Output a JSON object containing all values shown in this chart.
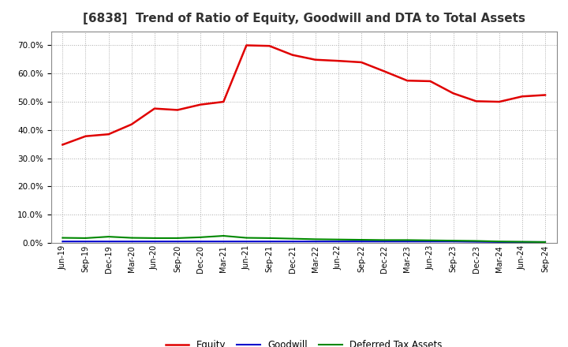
{
  "title": "[6838]  Trend of Ratio of Equity, Goodwill and DTA to Total Assets",
  "x_labels": [
    "Jun-19",
    "Sep-19",
    "Dec-19",
    "Mar-20",
    "Jun-20",
    "Sep-20",
    "Dec-20",
    "Mar-21",
    "Jun-21",
    "Sep-21",
    "Dec-21",
    "Mar-22",
    "Jun-22",
    "Sep-22",
    "Dec-22",
    "Mar-23",
    "Jun-23",
    "Sep-23",
    "Dec-23",
    "Mar-24",
    "Jun-24",
    "Sep-24"
  ],
  "equity": [
    0.348,
    0.378,
    0.385,
    0.42,
    0.476,
    0.471,
    0.49,
    0.5,
    0.7,
    0.698,
    0.666,
    0.649,
    0.645,
    0.64,
    0.608,
    0.575,
    0.573,
    0.53,
    0.502,
    0.5,
    0.519,
    0.524
  ],
  "goodwill": [
    0.005,
    0.005,
    0.005,
    0.005,
    0.005,
    0.005,
    0.005,
    0.005,
    0.005,
    0.005,
    0.005,
    0.005,
    0.005,
    0.005,
    0.005,
    0.005,
    0.005,
    0.005,
    0.004,
    0.003,
    0.003,
    0.003
  ],
  "dta": [
    0.018,
    0.017,
    0.022,
    0.018,
    0.017,
    0.017,
    0.02,
    0.025,
    0.018,
    0.017,
    0.015,
    0.013,
    0.012,
    0.011,
    0.01,
    0.01,
    0.009,
    0.008,
    0.007,
    0.005,
    0.004,
    0.003
  ],
  "equity_color": "#e00000",
  "goodwill_color": "#0000cc",
  "dta_color": "#008800",
  "ylim": [
    0.0,
    0.75
  ],
  "yticks": [
    0.0,
    0.1,
    0.2,
    0.3,
    0.4,
    0.5,
    0.6,
    0.7
  ],
  "background_color": "#ffffff",
  "grid_color": "#aaaaaa",
  "title_fontsize": 11,
  "legend_labels": [
    "Equity",
    "Goodwill",
    "Deferred Tax Assets"
  ]
}
